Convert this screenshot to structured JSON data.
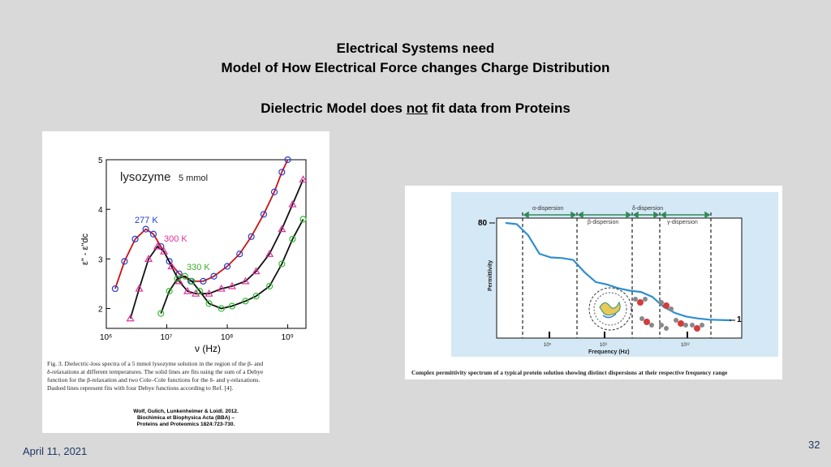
{
  "slide": {
    "title_line1": "Electrical Systems need",
    "title_line2": "Model of How Electrical Force changes Charge Distribution",
    "subtitle_pre": "Dielectric Model does ",
    "subtitle_em": "not",
    "subtitle_post": " fit data from Proteins",
    "date": "April 11, 2021",
    "page": "32"
  },
  "left_figure": {
    "label": "lysozyme",
    "label_conc": "5 mmol",
    "series_labels": [
      "277 K",
      "300 K",
      "330 K"
    ],
    "ylabel": "ε\" - ε\"dc",
    "xlabel": "ν (Hz)",
    "caption_lines": [
      "Fig. 3. Dielectric-loss spectra of a 5 mmol lysozyme solution in the region of the β- and",
      "δ-relaxations at different temperatures. The solid lines are fits using the sum of a Debye",
      "function for the β-relaxation and two Cole–Cole functions for the δ- and γ-relaxations.",
      "Dashed lines represent fits with four Debye functions according to Ref. [4]."
    ],
    "ref_lines": [
      "Wolf, Gulich, Lunkenheimer & Loidl. 2012.",
      "Biochimica et Biophysica Acta (BBA) –",
      "Proteins and Proteomics 1824:723-730."
    ]
  },
  "right_figure": {
    "dispersions_top": [
      "α-dispersion",
      "δ-dispersion"
    ],
    "dispersions_bottom": [
      "β-dispersion",
      "γ-dispersion"
    ],
    "ylabel": "Permittivity",
    "xlabel": "Frequency (Hz)",
    "label_80": "80",
    "label_1": "1",
    "caption": "Complex permittivity spectrum of a typical protein solution showing distinct dispersions at their respective frequency range"
  },
  "chart_data": [
    {
      "type": "scatter",
      "xlabel": "ν (Hz)",
      "ylabel": "ε\" - ε\"dc",
      "x_scale": "log",
      "xlim": [
        1000000,
        2000000000
      ],
      "ylim": [
        1.6,
        5
      ],
      "x_ticks": [
        "10⁶",
        "10⁷",
        "10⁸",
        "10⁹"
      ],
      "y_ticks": [
        2,
        3,
        4,
        5
      ],
      "series": [
        {
          "name": "277 K",
          "color": "#1f3fd6",
          "marker": "circle",
          "x": [
            1400000.0,
            2000000.0,
            3000000.0,
            4500000.0,
            6000000.0,
            8000000.0,
            11000000.0,
            16000000.0,
            25000000.0,
            40000000.0,
            60000000.0,
            100000000.0,
            160000000.0,
            250000000.0,
            400000000.0,
            600000000.0,
            800000000.0,
            1000000000.0
          ],
          "y": [
            2.4,
            2.95,
            3.4,
            3.6,
            3.5,
            3.25,
            2.95,
            2.7,
            2.55,
            2.55,
            2.65,
            2.85,
            3.1,
            3.45,
            3.9,
            4.35,
            4.75,
            5.0
          ]
        },
        {
          "name": "300 K",
          "color": "#e0309a",
          "marker": "triangle",
          "x": [
            2500000.0,
            3500000.0,
            5000000.0,
            7000000.0,
            9000000.0,
            12000000.0,
            16000000.0,
            22000000.0,
            30000000.0,
            50000000.0,
            80000000.0,
            120000000.0,
            200000000.0,
            300000000.0,
            500000000.0,
            800000000.0,
            1200000000.0,
            1800000000.0
          ],
          "y": [
            1.8,
            2.4,
            3.0,
            3.25,
            3.15,
            2.85,
            2.55,
            2.35,
            2.3,
            2.3,
            2.4,
            2.45,
            2.55,
            2.75,
            3.1,
            3.6,
            4.1,
            4.6
          ]
        },
        {
          "name": "330 K",
          "color": "#2fbf2f",
          "marker": "circle",
          "x": [
            8000000.0,
            11000000.0,
            15000000.0,
            20000000.0,
            26000000.0,
            35000000.0,
            50000000.0,
            80000000.0,
            120000000.0,
            200000000.0,
            300000000.0,
            500000000.0,
            800000000.0,
            1200000000.0,
            1800000000.0
          ],
          "y": [
            1.9,
            2.35,
            2.6,
            2.65,
            2.55,
            2.35,
            2.1,
            2.0,
            2.05,
            2.15,
            2.25,
            2.45,
            2.9,
            3.4,
            3.8
          ]
        }
      ]
    },
    {
      "type": "line",
      "xlabel": "Frequency (Hz)",
      "ylabel": "Permittivity",
      "x_scale": "log",
      "x_ticks": [
        "10⁵",
        "10⁹",
        "10¹²"
      ],
      "series": [
        {
          "x": [
            0,
            1,
            2,
            3,
            4,
            5,
            6,
            7,
            8,
            9,
            10,
            11,
            12,
            13,
            14,
            15,
            16,
            17,
            18,
            19,
            20
          ],
          "y": [
            80,
            79,
            70,
            55,
            52,
            51.5,
            50,
            40,
            32,
            30,
            27,
            25,
            24,
            20,
            12,
            7,
            4,
            2.5,
            1.5,
            1.2,
            1
          ]
        }
      ]
    }
  ]
}
